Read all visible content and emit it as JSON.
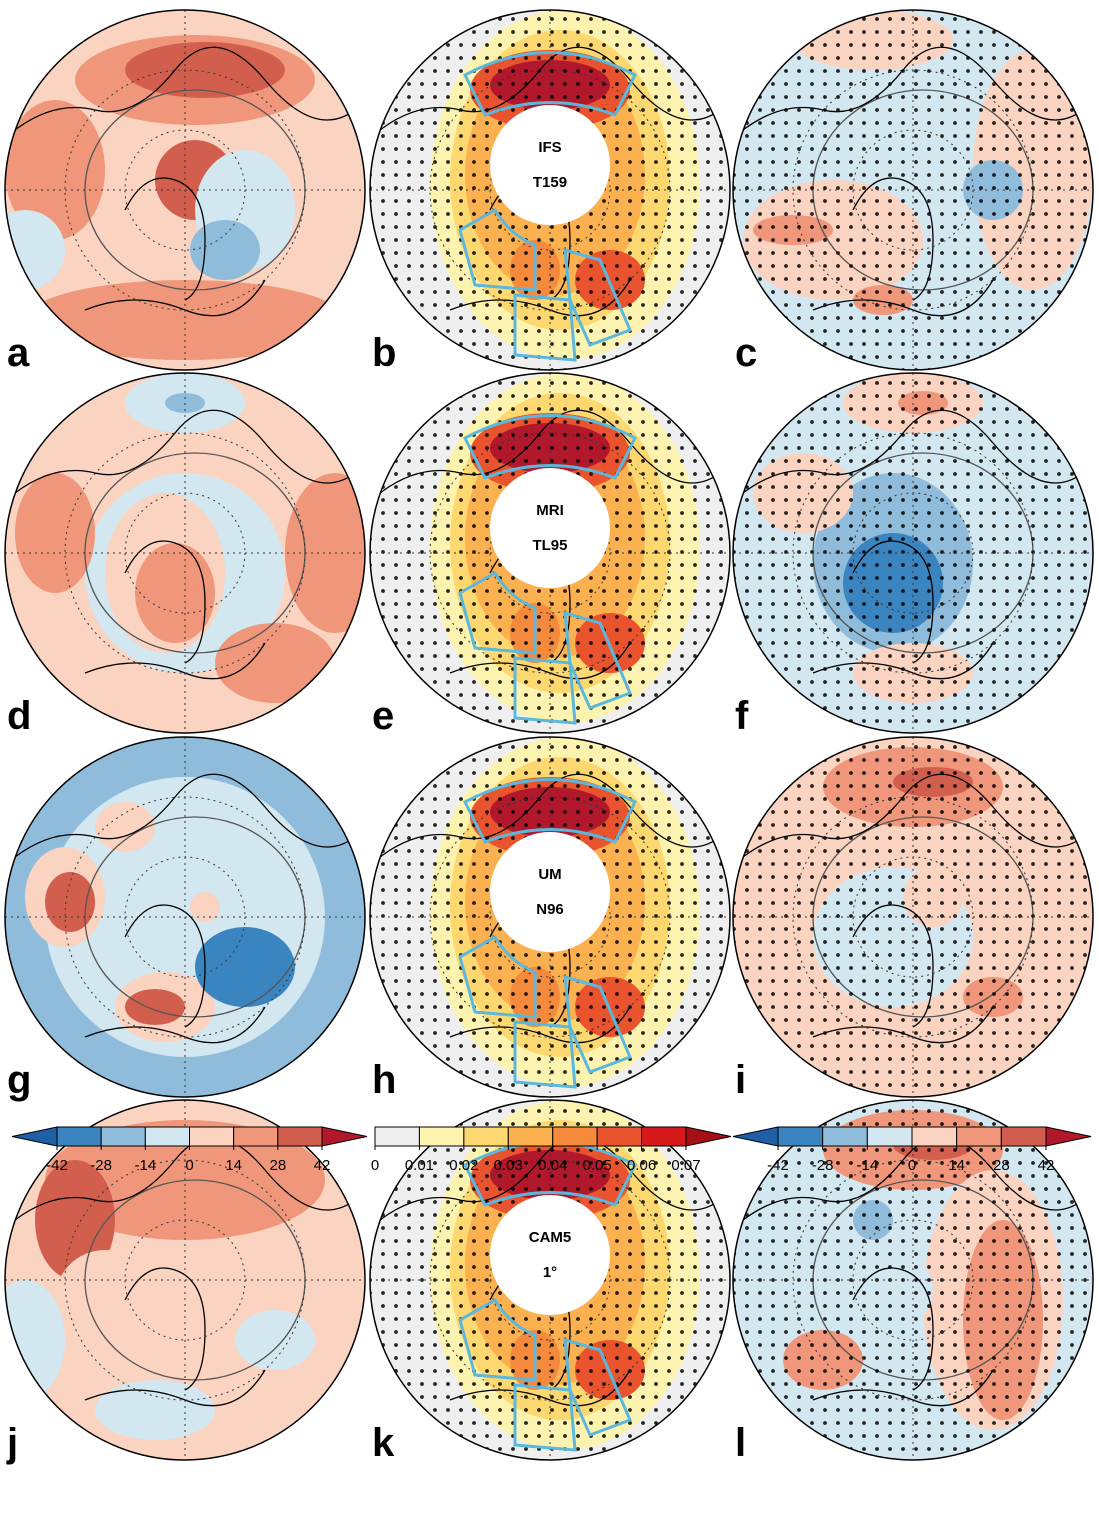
{
  "panels": [
    {
      "letter": "a"
    },
    {
      "letter": "b",
      "model": "IFS",
      "resolution": "T159"
    },
    {
      "letter": "c"
    },
    {
      "letter": "d"
    },
    {
      "letter": "e",
      "model": "MRI",
      "resolution": "TL95"
    },
    {
      "letter": "f"
    },
    {
      "letter": "g"
    },
    {
      "letter": "h",
      "model": "UM",
      "resolution": "N96"
    },
    {
      "letter": "i"
    },
    {
      "letter": "j"
    },
    {
      "letter": "k",
      "model": "CAM5",
      "resolution": "1°"
    },
    {
      "letter": "l"
    }
  ],
  "colorbars": [
    {
      "ticks": [
        -42,
        -28,
        -14,
        0,
        14,
        28,
        42
      ],
      "extend": "both",
      "colors": [
        "#1f5fa6",
        "#3a84c0",
        "#8fbcdb",
        "#d3e7f1",
        "#fbd3c1",
        "#f0967a",
        "#d25f4e",
        "#b2182b"
      ]
    },
    {
      "ticks": [
        0,
        0.01,
        0.02,
        0.03,
        0.04,
        0.05,
        0.06,
        0.07
      ],
      "extend": "max",
      "colors": [
        "#efefef",
        "#fdf3b0",
        "#fdd870",
        "#fbb150",
        "#f58a3c",
        "#e9532e",
        "#d7191c",
        "#a50f15"
      ]
    },
    {
      "ticks": [
        -42,
        -28,
        -14,
        0,
        14,
        28,
        42
      ],
      "extend": "both",
      "colors": [
        "#1f5fa6",
        "#3a84c0",
        "#8fbcdb",
        "#d3e7f1",
        "#fbd3c1",
        "#f0967a",
        "#d25f4e",
        "#b2182b"
      ]
    }
  ]
}
